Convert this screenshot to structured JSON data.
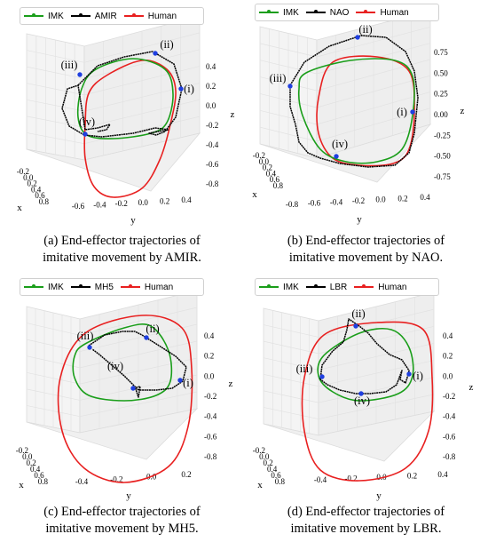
{
  "colors": {
    "imk": "#1a9e1a",
    "robot": "#000000",
    "human": "#e82020",
    "marker": "#1f3fe0"
  },
  "panels": [
    {
      "legend": [
        "IMK",
        "AMIR",
        "Human"
      ],
      "caption": [
        "(a) End-effector trajectories of",
        "imitative movement by AMIR."
      ],
      "axis_labels": {
        "x": "x",
        "y": "y",
        "z": "z"
      },
      "x_ticks": [
        "-0.2",
        "0.0",
        "0.2",
        "0.4",
        "0.6",
        "0.8"
      ],
      "y_ticks": [
        "-0.6",
        "-0.4",
        "-0.2",
        "0.0",
        "0.2",
        "0.4"
      ],
      "z_ticks": [
        "0.4",
        "0.2",
        "0.0",
        "-0.2",
        "-0.4",
        "-0.6",
        "-0.8"
      ],
      "points": [
        "(i)",
        "(ii)",
        "(iii)",
        "(iv)"
      ]
    },
    {
      "legend": [
        "IMK",
        "NAO",
        "Human"
      ],
      "caption": [
        "(b) End-effector trajectories of",
        "imitative movement by NAO."
      ],
      "axis_labels": {
        "x": "x",
        "y": "y",
        "z": "z"
      },
      "x_ticks": [
        "-0.2",
        "0.0",
        "0.2",
        "0.4",
        "0.6",
        "0.8"
      ],
      "y_ticks": [
        "-0.8",
        "-0.6",
        "-0.4",
        "-0.2",
        "0.0",
        "0.2",
        "0.4"
      ],
      "z_ticks": [
        "0.75",
        "0.50",
        "0.25",
        "0.00",
        "-0.25",
        "-0.50",
        "-0.75"
      ],
      "points": [
        "(i)",
        "(ii)",
        "(iii)",
        "(iv)"
      ]
    },
    {
      "legend": [
        "IMK",
        "MH5",
        "Human"
      ],
      "caption": [
        "(c) End-effector trajectories of",
        "imitative movement by MH5."
      ],
      "axis_labels": {
        "x": "x",
        "y": "y",
        "z": "z"
      },
      "x_ticks": [
        "-0.2",
        "0.0",
        "0.2",
        "0.4",
        "0.6",
        "0.8"
      ],
      "y_ticks": [
        "-0.4",
        "-0.2",
        "0.0",
        "0.2"
      ],
      "z_ticks": [
        "0.4",
        "0.2",
        "0.0",
        "-0.2",
        "-0.4",
        "-0.6",
        "-0.8"
      ],
      "points": [
        "(i)",
        "(ii)",
        "(iii)",
        "(iv)"
      ]
    },
    {
      "legend": [
        "IMK",
        "LBR",
        "Human"
      ],
      "caption": [
        "(d) End-effector trajectories of",
        "imitative movement by LBR."
      ],
      "axis_labels": {
        "x": "x",
        "y": "y",
        "z": "z"
      },
      "x_ticks": [
        "-0.2",
        "0.0",
        "0.2",
        "0.4",
        "0.6",
        "0.8"
      ],
      "y_ticks": [
        "-0.4",
        "-0.2",
        "0.0",
        "0.2",
        "0.4"
      ],
      "z_ticks": [
        "0.4",
        "0.2",
        "0.0",
        "-0.2",
        "-0.4",
        "-0.6",
        "-0.8"
      ],
      "points": [
        "(i)",
        "(ii)",
        "(iii)",
        "(iv)"
      ]
    }
  ],
  "chart_data": [
    {
      "type": "line",
      "projection": "3d",
      "series": [
        {
          "name": "IMK"
        },
        {
          "name": "AMIR"
        },
        {
          "name": "Human"
        }
      ],
      "xlabel": "x",
      "ylabel": "y",
      "zlabel": "z",
      "xlim": [
        -0.2,
        0.8
      ],
      "ylim": [
        -0.6,
        0.4
      ],
      "zlim": [
        -0.8,
        0.4
      ],
      "annotations": [
        "(i)",
        "(ii)",
        "(iii)",
        "(iv)"
      ]
    },
    {
      "type": "line",
      "projection": "3d",
      "series": [
        {
          "name": "IMK"
        },
        {
          "name": "NAO"
        },
        {
          "name": "Human"
        }
      ],
      "xlabel": "x",
      "ylabel": "y",
      "zlabel": "z",
      "xlim": [
        -0.2,
        0.8
      ],
      "ylim": [
        -0.8,
        0.4
      ],
      "zlim": [
        -0.75,
        0.75
      ],
      "annotations": [
        "(i)",
        "(ii)",
        "(iii)",
        "(iv)"
      ]
    },
    {
      "type": "line",
      "projection": "3d",
      "series": [
        {
          "name": "IMK"
        },
        {
          "name": "MH5"
        },
        {
          "name": "Human"
        }
      ],
      "xlabel": "x",
      "ylabel": "y",
      "zlabel": "z",
      "xlim": [
        -0.2,
        0.8
      ],
      "ylim": [
        -0.4,
        0.2
      ],
      "zlim": [
        -0.8,
        0.4
      ],
      "annotations": [
        "(i)",
        "(ii)",
        "(iii)",
        "(iv)"
      ]
    },
    {
      "type": "line",
      "projection": "3d",
      "series": [
        {
          "name": "IMK"
        },
        {
          "name": "LBR"
        },
        {
          "name": "Human"
        }
      ],
      "xlabel": "x",
      "ylabel": "y",
      "zlabel": "z",
      "xlim": [
        -0.2,
        0.8
      ],
      "ylim": [
        -0.4,
        0.4
      ],
      "zlim": [
        -0.8,
        0.4
      ],
      "annotations": [
        "(i)",
        "(ii)",
        "(iii)",
        "(iv)"
      ]
    }
  ]
}
